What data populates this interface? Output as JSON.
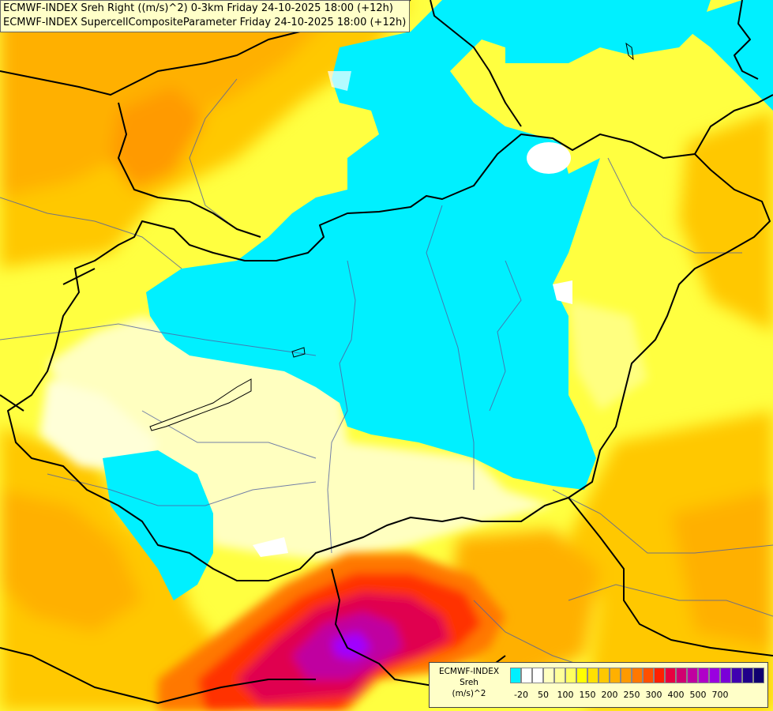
{
  "map": {
    "titles": [
      "ECMWF-INDEX Sreh Right ((m/s)^2) 0-3km Friday 24-10-2025 18:00 (+12h)",
      "ECMWF-INDEX SupercellCompositeParameter Friday 24-10-2025 18:00 (+12h)"
    ],
    "colors": {
      "background": "#ffffc0",
      "cyan": "#00f0ff",
      "white": "#ffffff",
      "pale_yellow": "#ffffc0",
      "yellow": "#ffff00",
      "gold": "#ffd700",
      "orange": "#ffb000",
      "dark_orange": "#ff8800",
      "red_orange": "#ff5a00",
      "red": "#ff0030",
      "crimson": "#e00060",
      "magenta": "#c000a0",
      "purple": "#a000ff",
      "border_line": "#000000",
      "river_line": "#5060a0"
    }
  },
  "legend": {
    "title_lines": [
      "ECMWF-INDEX",
      "Sreh",
      "(m/s)^2"
    ],
    "colors": [
      "#00f0ff",
      "#ffffff",
      "#ffffff",
      "#ffffc0",
      "#ffff9a",
      "#ffff60",
      "#ffff00",
      "#ffe000",
      "#ffc800",
      "#ffb000",
      "#ff9a00",
      "#ff7800",
      "#ff5000",
      "#ff2000",
      "#e80040",
      "#d00070",
      "#c000a0",
      "#b000c8",
      "#9a00e0",
      "#7a00d8",
      "#4000b0",
      "#20008a",
      "#100070"
    ],
    "labels": [
      "-20",
      "50",
      "100",
      "150",
      "200",
      "250",
      "300",
      "400",
      "500",
      "700"
    ]
  }
}
